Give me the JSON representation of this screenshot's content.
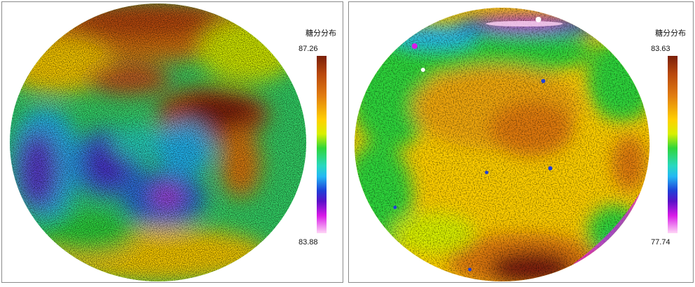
{
  "panels": [
    {
      "legend_title": "糖分分布",
      "max_value": "87.26",
      "min_value": "83.88"
    },
    {
      "legend_title": "糖分分布",
      "max_value": "83.63",
      "min_value": "77.74"
    }
  ],
  "colors": {
    "scale": [
      "#7a1f08",
      "#b8470c",
      "#e07a10",
      "#ffd000",
      "#d8f000",
      "#2fd63a",
      "#28d8c0",
      "#24b8f4",
      "#1f3fd8",
      "#5a10c8",
      "#d81ae8",
      "#ffd6f6"
    ],
    "panel_border": "#8a8a8a",
    "background": "#ffffff"
  }
}
